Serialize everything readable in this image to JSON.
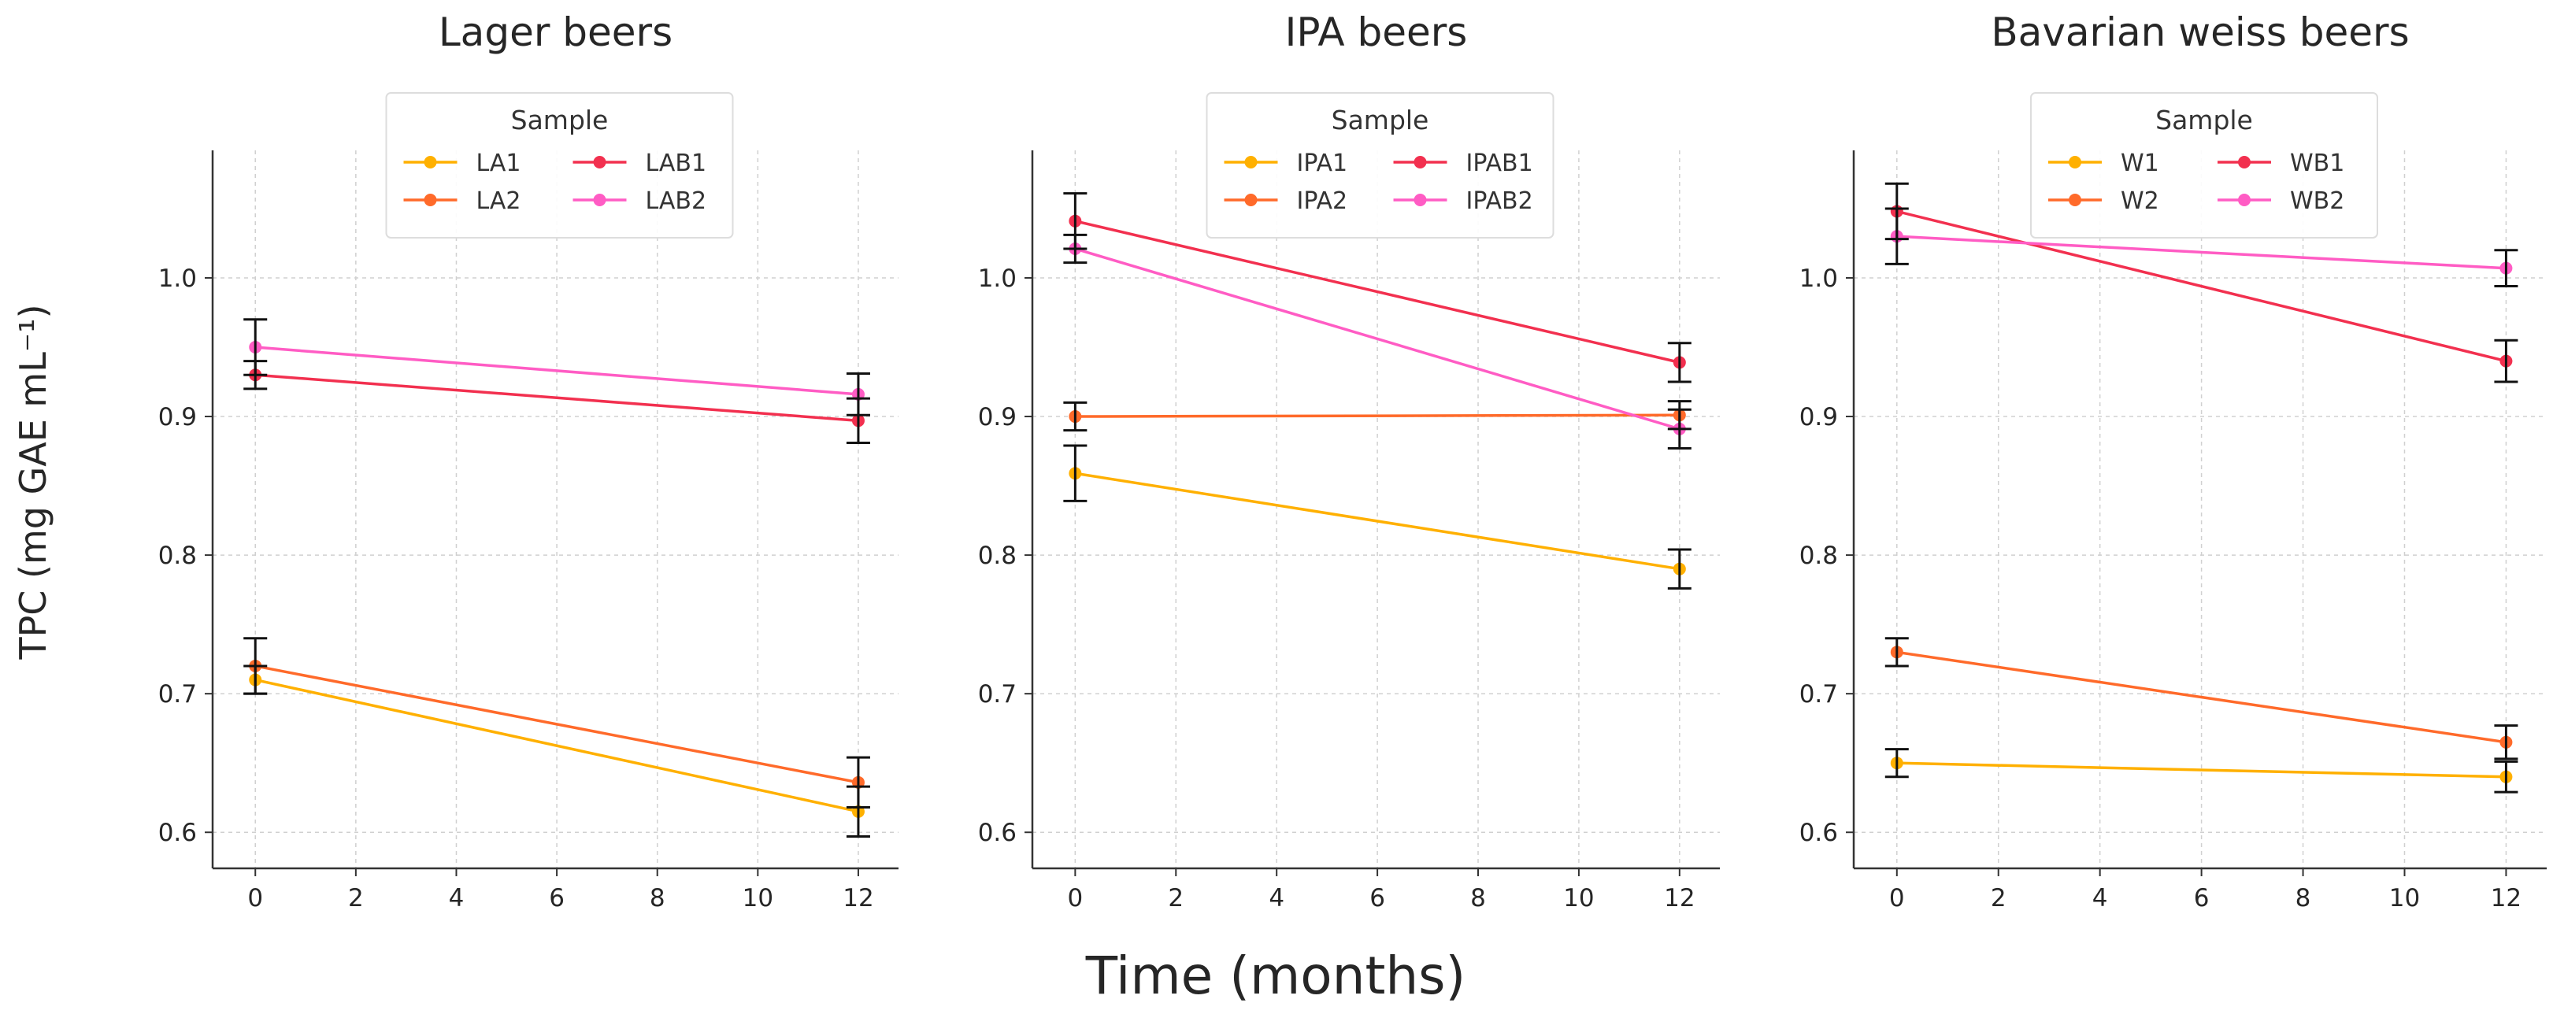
{
  "figure": {
    "xlabel": "Time (months)",
    "ylabel": "TPC (mg GAE mL⁻¹)"
  },
  "chart_data": [
    {
      "type": "line",
      "title": "Lager beers",
      "xlim": [
        -0.85,
        12.8
      ],
      "ylim": [
        0.574,
        1.092
      ],
      "xticks": [
        "0",
        "2",
        "4",
        "6",
        "8",
        "10",
        "12"
      ],
      "yticks": [
        "0.6",
        "0.7",
        "0.8",
        "0.9",
        "1.0"
      ],
      "grid": true,
      "legend_title": "Sample",
      "legend_position": "top-center",
      "series": [
        {
          "name": "LA1",
          "color": "#FFB000",
          "x": [
            0,
            12
          ],
          "y": [
            0.71,
            0.615
          ],
          "yerr": [
            0.01,
            0.018
          ]
        },
        {
          "name": "LA2",
          "color": "#FF6A2A",
          "x": [
            0,
            12
          ],
          "y": [
            0.72,
            0.636
          ],
          "yerr": [
            0.02,
            0.018
          ]
        },
        {
          "name": "LAB1",
          "color": "#F2304F",
          "x": [
            0,
            12
          ],
          "y": [
            0.93,
            0.897
          ],
          "yerr": [
            0.01,
            0.016
          ]
        },
        {
          "name": "LAB2",
          "color": "#FF5CC4",
          "x": [
            0,
            12
          ],
          "y": [
            0.95,
            0.916
          ],
          "yerr": [
            0.02,
            0.015
          ]
        }
      ]
    },
    {
      "type": "line",
      "title": "IPA beers",
      "xlim": [
        -0.85,
        12.8
      ],
      "ylim": [
        0.574,
        1.092
      ],
      "xticks": [
        "0",
        "2",
        "4",
        "6",
        "8",
        "10",
        "12"
      ],
      "yticks": [
        "0.6",
        "0.7",
        "0.8",
        "0.9",
        "1.0"
      ],
      "grid": true,
      "legend_title": "Sample",
      "legend_position": "top-center",
      "series": [
        {
          "name": "IPA1",
          "color": "#FFB000",
          "x": [
            0,
            12
          ],
          "y": [
            0.859,
            0.79
          ],
          "yerr": [
            0.02,
            0.014
          ]
        },
        {
          "name": "IPA2",
          "color": "#FF6A2A",
          "x": [
            0,
            12
          ],
          "y": [
            0.9,
            0.901
          ],
          "yerr": [
            0.01,
            0.01
          ]
        },
        {
          "name": "IPAB1",
          "color": "#F2304F",
          "x": [
            0,
            12
          ],
          "y": [
            1.041,
            0.939
          ],
          "yerr": [
            0.02,
            0.014
          ]
        },
        {
          "name": "IPAB2",
          "color": "#FF5CC4",
          "x": [
            0,
            12
          ],
          "y": [
            1.021,
            0.891
          ],
          "yerr": [
            0.01,
            0.014
          ]
        }
      ]
    },
    {
      "type": "line",
      "title": "Bavarian weiss beers",
      "xlim": [
        -0.85,
        12.8
      ],
      "ylim": [
        0.574,
        1.092
      ],
      "xticks": [
        "0",
        "2",
        "4",
        "6",
        "8",
        "10",
        "12"
      ],
      "yticks": [
        "0.6",
        "0.7",
        "0.8",
        "0.9",
        "1.0"
      ],
      "grid": true,
      "legend_title": "Sample",
      "legend_position": "top-center",
      "series": [
        {
          "name": "W1",
          "color": "#FFB000",
          "x": [
            0,
            12
          ],
          "y": [
            0.65,
            0.64
          ],
          "yerr": [
            0.01,
            0.011
          ]
        },
        {
          "name": "W2",
          "color": "#FF6A2A",
          "x": [
            0,
            12
          ],
          "y": [
            0.73,
            0.665
          ],
          "yerr": [
            0.01,
            0.012
          ]
        },
        {
          "name": "WB1",
          "color": "#F2304F",
          "x": [
            0,
            12
          ],
          "y": [
            1.048,
            0.94
          ],
          "yerr": [
            0.02,
            0.015
          ]
        },
        {
          "name": "WB2",
          "color": "#FF5CC4",
          "x": [
            0,
            12
          ],
          "y": [
            1.03,
            1.007
          ],
          "yerr": [
            0.02,
            0.013
          ]
        }
      ]
    }
  ]
}
